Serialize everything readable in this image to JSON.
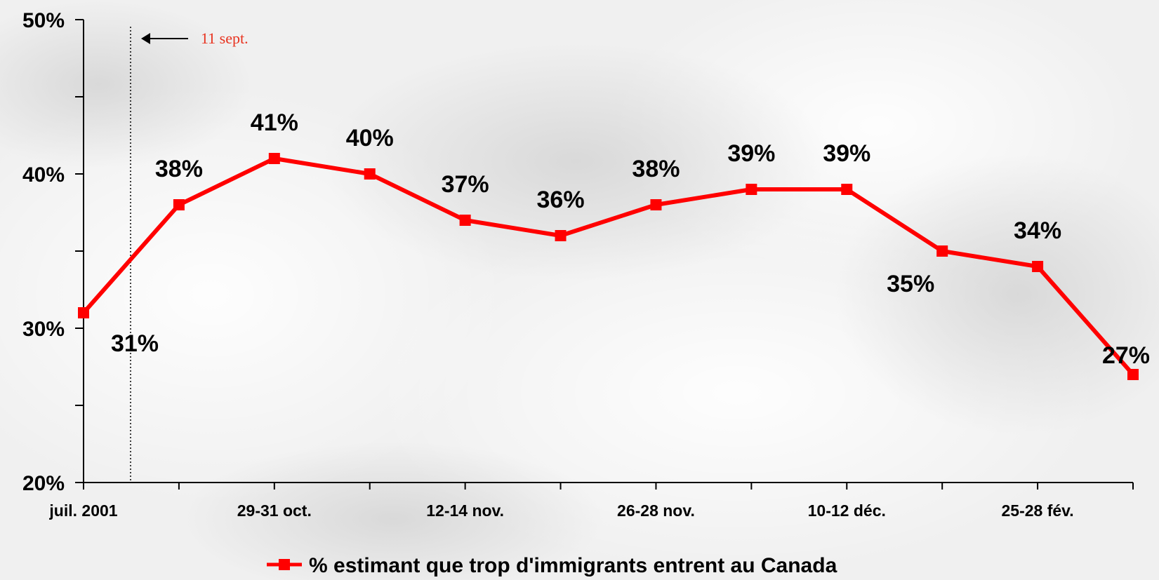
{
  "colors": {
    "series": "#ff0000",
    "annotation": "#e8321e",
    "axis": "#000000",
    "background": "#f2f2f2"
  },
  "chart_data": {
    "type": "line",
    "title": "",
    "xlabel": "",
    "ylabel": "",
    "ylim": [
      20,
      50
    ],
    "y_ticks": [
      "20%",
      "30%",
      "40%",
      "50%"
    ],
    "y_tick_values": [
      20,
      30,
      40,
      50
    ],
    "x_tick_labels": [
      "juil. 2001",
      "",
      "29-31 oct.",
      "",
      "12-14 nov.",
      "",
      "26-28 nov.",
      "",
      "10-12 déc.",
      "",
      "25-28 fév.",
      ""
    ],
    "grid": false,
    "legend_position": "bottom",
    "series": [
      {
        "name": "% estimant que trop d'immigrants entrent au Canada",
        "values": [
          31,
          38,
          41,
          40,
          37,
          36,
          38,
          39,
          39,
          35,
          34,
          27
        ],
        "labels": [
          "31%",
          "38%",
          "41%",
          "40%",
          "37%",
          "36%",
          "38%",
          "39%",
          "39%",
          "35%",
          "34%",
          "27%"
        ],
        "label_side": [
          "below",
          "above",
          "above",
          "above",
          "above",
          "above",
          "above",
          "above",
          "above",
          "below",
          "above",
          "above"
        ]
      }
    ],
    "annotation": {
      "text": "11 sept."
    }
  }
}
